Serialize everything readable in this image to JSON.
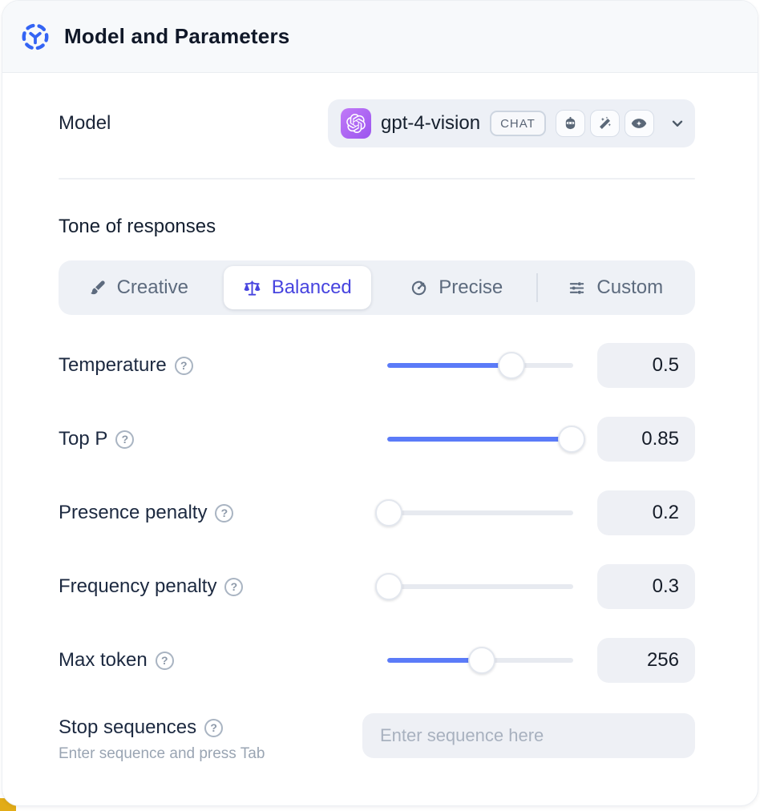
{
  "header": {
    "title": "Model and Parameters"
  },
  "model_row": {
    "label": "Model",
    "model_name": "gpt-4-vision",
    "type_badge": "CHAT",
    "capabilities": [
      "assistant",
      "magic-wand",
      "vision"
    ]
  },
  "tone": {
    "title": "Tone of responses",
    "options": [
      {
        "label": "Creative",
        "icon": "paintbrush-icon",
        "selected": false
      },
      {
        "label": "Balanced",
        "icon": "scale-icon",
        "selected": true
      },
      {
        "label": "Precise",
        "icon": "target-icon",
        "selected": false
      },
      {
        "label": "Custom",
        "icon": "sliders-icon",
        "selected": false
      }
    ]
  },
  "parameters": [
    {
      "label": "Temperature",
      "value": "0.5",
      "fill_pct": 67
    },
    {
      "label": "Top P",
      "value": "0.85",
      "fill_pct": 99
    },
    {
      "label": "Presence penalty",
      "value": "0.2",
      "fill_pct": 1
    },
    {
      "label": "Frequency penalty",
      "value": "0.3",
      "fill_pct": 1
    },
    {
      "label": "Max token",
      "value": "256",
      "fill_pct": 51
    }
  ],
  "stop_sequences": {
    "label": "Stop sequences",
    "helper": "Enter sequence and press Tab",
    "placeholder": "Enter sequence here"
  },
  "icons": {
    "help_glyph": "?"
  },
  "colors": {
    "accent_blue": "#5b7bf8",
    "selected_indigo": "#4744df",
    "brand_purple": "#9b55ef",
    "header_icon_blue": "#3464f4",
    "corner_yellow": "#e2ac17"
  }
}
